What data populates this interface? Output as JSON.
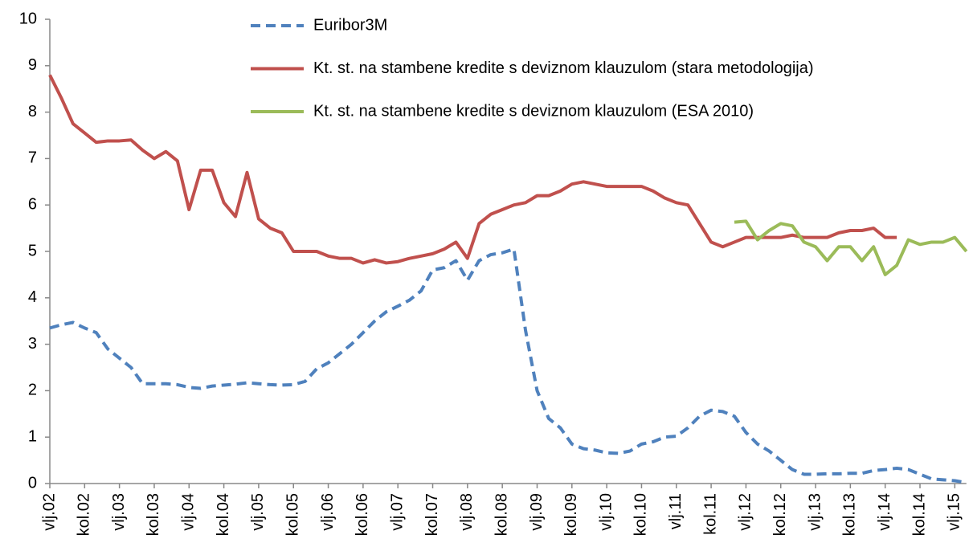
{
  "chart_data": {
    "type": "line",
    "categories": [
      "vlj.02",
      null,
      null,
      "kol.02",
      null,
      null,
      "vlj.03",
      null,
      null,
      "kol.03",
      null,
      null,
      "vlj.04",
      null,
      null,
      "kol.04",
      null,
      null,
      "vlj.05",
      null,
      null,
      "kol.05",
      null,
      null,
      "vlj.06",
      null,
      null,
      "kol.06",
      null,
      null,
      "vlj.07",
      null,
      null,
      "kol.07",
      null,
      null,
      "vlj.08",
      null,
      null,
      "kol.08",
      null,
      null,
      "vlj.09",
      null,
      null,
      "kol.09",
      null,
      null,
      "vlj.10",
      null,
      null,
      "kol.10",
      null,
      null,
      "vlj.11",
      null,
      null,
      "kol.11",
      null,
      null,
      "vlj.12",
      null,
      null,
      "kol.12",
      null,
      null,
      "vlj.13",
      null,
      null,
      "kol.13",
      null,
      null,
      "vlj.14",
      null,
      null,
      "kol.14",
      null,
      null,
      "vlj.15",
      null
    ],
    "series": [
      {
        "name": "Euribor3M",
        "color": "#4f81bd",
        "dashed": true,
        "values": [
          3.35,
          3.42,
          3.47,
          3.35,
          3.25,
          2.9,
          2.7,
          2.5,
          2.15,
          2.15,
          2.15,
          2.13,
          2.07,
          2.05,
          2.1,
          2.12,
          2.14,
          2.17,
          2.15,
          2.13,
          2.12,
          2.13,
          2.2,
          2.47,
          2.6,
          2.8,
          3.0,
          3.25,
          3.5,
          3.7,
          3.82,
          3.95,
          4.15,
          4.6,
          4.65,
          4.8,
          4.38,
          4.8,
          4.93,
          4.97,
          5.05,
          3.3,
          2.0,
          1.4,
          1.2,
          0.85,
          0.75,
          0.72,
          0.66,
          0.65,
          0.7,
          0.85,
          0.9,
          1.0,
          1.02,
          1.2,
          1.45,
          1.58,
          1.55,
          1.45,
          1.1,
          0.85,
          0.7,
          0.5,
          0.3,
          0.2,
          0.2,
          0.21,
          0.21,
          0.22,
          0.22,
          0.28,
          0.3,
          0.33,
          0.3,
          0.2,
          0.1,
          0.08,
          0.06,
          0.02
        ]
      },
      {
        "name": "Kt. st. na stambene kredite s deviznom klauzulom (stara metodologija)",
        "color": "#c0504d",
        "dashed": false,
        "values": [
          8.8,
          8.3,
          7.75,
          7.55,
          7.35,
          7.38,
          7.38,
          7.4,
          7.18,
          7.0,
          7.15,
          6.95,
          5.9,
          6.75,
          6.75,
          6.05,
          5.75,
          6.7,
          5.7,
          5.5,
          5.4,
          5.0,
          5.0,
          5.0,
          4.9,
          4.85,
          4.85,
          4.75,
          4.82,
          4.75,
          4.78,
          4.85,
          4.9,
          4.95,
          5.05,
          5.2,
          4.85,
          5.6,
          5.8,
          5.9,
          6.0,
          6.05,
          6.2,
          6.2,
          6.3,
          6.45,
          6.5,
          6.45,
          6.4,
          6.4,
          6.4,
          6.4,
          6.3,
          6.15,
          6.05,
          6.0,
          5.6,
          5.2,
          5.1,
          5.2,
          5.3,
          5.3,
          5.3,
          5.3,
          5.35,
          5.3,
          5.3,
          5.3,
          5.4,
          5.45,
          5.45,
          5.5,
          5.3,
          5.3,
          null,
          null,
          null,
          null,
          null,
          null
        ]
      },
      {
        "name": "Kt. st. na stambene kredite s deviznom klauzulom (ESA 2010)",
        "color": "#9bbb59",
        "dashed": false,
        "values": [
          null,
          null,
          null,
          null,
          null,
          null,
          null,
          null,
          null,
          null,
          null,
          null,
          null,
          null,
          null,
          null,
          null,
          null,
          null,
          null,
          null,
          null,
          null,
          null,
          null,
          null,
          null,
          null,
          null,
          null,
          null,
          null,
          null,
          null,
          null,
          null,
          null,
          null,
          null,
          null,
          null,
          null,
          null,
          null,
          null,
          null,
          null,
          null,
          null,
          null,
          null,
          null,
          null,
          null,
          null,
          null,
          null,
          null,
          null,
          5.63,
          5.65,
          5.25,
          5.45,
          5.6,
          5.55,
          5.2,
          5.1,
          4.8,
          5.1,
          5.1,
          4.8,
          5.1,
          4.5,
          4.7,
          5.25,
          5.15,
          5.2,
          5.2,
          5.3,
          5.0
        ]
      }
    ],
    "ylim": [
      0,
      10
    ],
    "yticks": [
      0,
      1,
      2,
      3,
      4,
      5,
      6,
      7,
      8,
      9,
      10
    ],
    "grid": false,
    "legend": "top"
  }
}
